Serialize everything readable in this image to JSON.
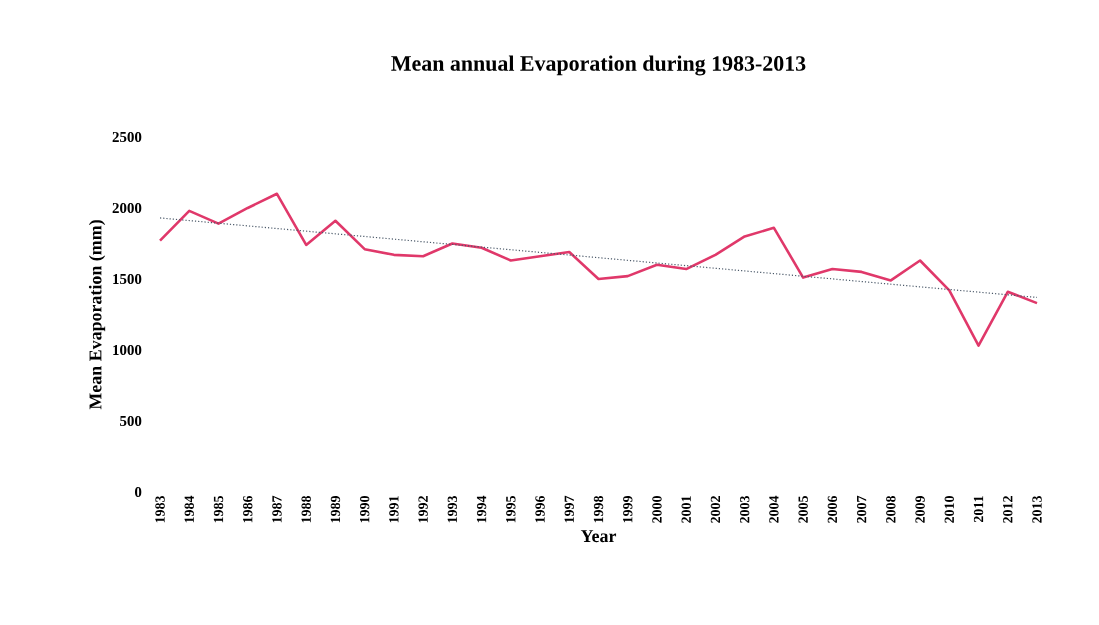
{
  "chart_data": {
    "type": "line",
    "title": "Mean annual Evaporation during 1983-2013",
    "xlabel": "Year",
    "ylabel": "Mean Evaporation (mm)",
    "categories": [
      "1983",
      "1984",
      "1985",
      "1986",
      "1987",
      "1988",
      "1989",
      "1990",
      "1991",
      "1992",
      "1993",
      "1994",
      "1995",
      "1996",
      "1997",
      "1998",
      "1999",
      "2000",
      "2001",
      "2002",
      "2003",
      "2004",
      "2005",
      "2006",
      "2007",
      "2008",
      "2009",
      "2010",
      "2011",
      "2012",
      "2013"
    ],
    "series": [
      {
        "color": "#e0386a",
        "values": [
          1770,
          1980,
          1890,
          2000,
          2100,
          1740,
          1910,
          1710,
          1670,
          1660,
          1750,
          1720,
          1630,
          1660,
          1690,
          1500,
          1520,
          1600,
          1570,
          1670,
          1800,
          1860,
          1510,
          1570,
          1550,
          1490,
          1630,
          1420,
          1030,
          1410,
          1330
        ]
      },
      {
        "type": "line",
        "color": "#4a5868",
        "line_style": "dotted",
        "values": [
          1930,
          null,
          null,
          null,
          null,
          null,
          null,
          null,
          null,
          null,
          null,
          null,
          null,
          null,
          null,
          null,
          null,
          null,
          null,
          null,
          null,
          null,
          null,
          null,
          null,
          null,
          null,
          null,
          null,
          null,
          1370
        ]
      }
    ],
    "ylim": [
      0,
      2500
    ],
    "yticks": [
      0,
      500,
      1000,
      1500,
      2000,
      2500
    ],
    "grid": false,
    "legend": false
  }
}
